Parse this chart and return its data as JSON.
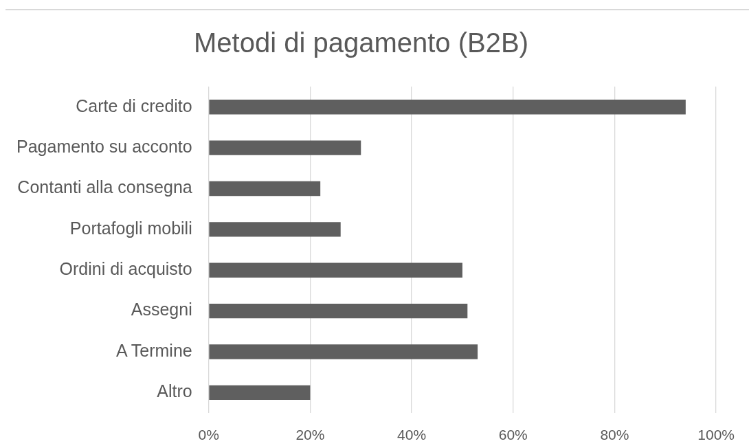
{
  "chart_data": {
    "type": "bar",
    "orientation": "horizontal",
    "title": "Metodi di pagamento (B2B)",
    "categories": [
      "Carte di credito",
      "Pagamento su acconto",
      "Contanti alla consegna",
      "Portafogli mobili",
      "Ordini di acquisto",
      "Assegni",
      "A Termine",
      "Altro"
    ],
    "values": [
      94,
      30,
      22,
      26,
      50,
      51,
      53,
      20
    ],
    "color": "#5f5f5f",
    "xlim": [
      0,
      100
    ],
    "xticks": [
      {
        "value": 0,
        "label": "0%"
      },
      {
        "value": 20,
        "label": "20%"
      },
      {
        "value": 40,
        "label": "40%"
      },
      {
        "value": 60,
        "label": "60%"
      },
      {
        "value": 80,
        "label": "80%"
      },
      {
        "value": 100,
        "label": "100%"
      }
    ],
    "grid": "x"
  }
}
